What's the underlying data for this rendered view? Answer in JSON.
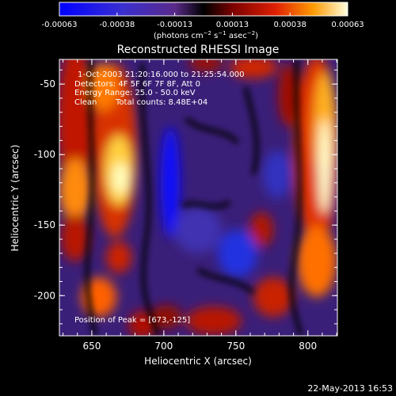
{
  "colorbar": {
    "ticks": [
      "-0.00063",
      "-0.00038",
      "-0.00013",
      "0.00013",
      "0.00038",
      "0.00063"
    ],
    "unit_main": "(photons cm",
    "unit_exp1": "−2",
    "unit_mid": " s",
    "unit_exp2": "−1",
    "unit_tail": " asec",
    "unit_exp3": "−2",
    "unit_close": ")"
  },
  "image": {
    "title": "Reconstructed RHESSI Image",
    "annotations": {
      "time_range": "1-Oct-2003 21:20:16.000 to 21:25:54.000",
      "detectors": "Detectors: 4F 5F 6F 7F 8F, Att 0",
      "energy": "Energy Range: 25.0 - 50.0 keV",
      "clean_label": "Clean",
      "total_counts": "Total counts: 8.48E+04",
      "peak": "Position of Peak = [673,-125]"
    },
    "x_axis": {
      "label": "Heliocentric X (arcsec)",
      "ticks": [
        "650",
        "700",
        "750",
        "800"
      ]
    },
    "y_axis": {
      "label": "Heliocentric Y (arcsec)",
      "ticks": [
        "-50",
        "-100",
        "-150",
        "-200"
      ]
    }
  },
  "footer": {
    "timestamp": "22-May-2013 16:53"
  },
  "colors": {
    "background": "#000000",
    "axis": "#ffffff"
  }
}
